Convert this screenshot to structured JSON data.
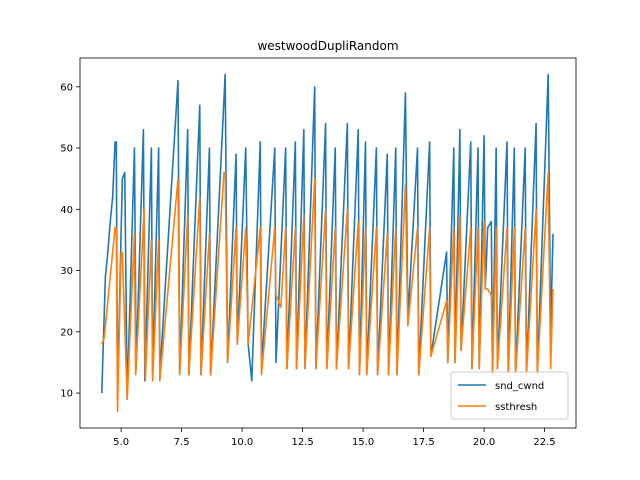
{
  "chart_data": {
    "type": "line",
    "title": "westwoodDupliRandom",
    "xlabel": "",
    "ylabel": "",
    "xlim": [
      3.3,
      23.8
    ],
    "ylim": [
      4.3,
      64.7
    ],
    "xticks": [
      5.0,
      7.5,
      10.0,
      12.5,
      15.0,
      17.5,
      20.0,
      22.5
    ],
    "xtick_labels": [
      "5.0",
      "7.5",
      "10.0",
      "12.5",
      "15.0",
      "17.5",
      "20.0",
      "22.5"
    ],
    "yticks": [
      10,
      20,
      30,
      40,
      50,
      60
    ],
    "ytick_labels": [
      "10",
      "20",
      "30",
      "40",
      "50",
      "60"
    ],
    "grid": false,
    "legend_position": "lower-right",
    "series": [
      {
        "name": "snd_cwnd",
        "color": "#1f77b4",
        "points": [
          [
            4.2,
            10
          ],
          [
            4.35,
            29
          ],
          [
            4.45,
            33
          ],
          [
            4.55,
            38
          ],
          [
            4.65,
            42
          ],
          [
            4.75,
            51
          ],
          [
            4.8,
            51
          ],
          [
            4.85,
            10
          ],
          [
            5.05,
            45
          ],
          [
            5.15,
            46
          ],
          [
            5.25,
            9
          ],
          [
            5.55,
            50
          ],
          [
            5.62,
            14
          ],
          [
            5.92,
            53
          ],
          [
            5.98,
            12
          ],
          [
            6.25,
            50
          ],
          [
            6.3,
            13
          ],
          [
            6.55,
            50
          ],
          [
            6.6,
            13
          ],
          [
            7.35,
            61
          ],
          [
            7.42,
            13
          ],
          [
            7.75,
            53
          ],
          [
            7.8,
            13
          ],
          [
            8.25,
            57
          ],
          [
            8.3,
            13
          ],
          [
            8.65,
            50
          ],
          [
            8.7,
            13
          ],
          [
            9.3,
            62
          ],
          [
            9.4,
            15
          ],
          [
            9.75,
            49
          ],
          [
            9.8,
            18
          ],
          [
            10.15,
            50
          ],
          [
            10.25,
            18
          ],
          [
            10.4,
            12
          ],
          [
            10.75,
            51
          ],
          [
            10.8,
            14
          ],
          [
            11.35,
            50
          ],
          [
            11.4,
            15
          ],
          [
            11.8,
            50
          ],
          [
            11.85,
            14
          ],
          [
            12.2,
            51
          ],
          [
            12.25,
            14
          ],
          [
            12.55,
            53
          ],
          [
            12.6,
            14
          ],
          [
            13.0,
            60
          ],
          [
            13.05,
            14
          ],
          [
            13.45,
            54
          ],
          [
            13.5,
            14
          ],
          [
            13.85,
            50
          ],
          [
            13.9,
            14
          ],
          [
            14.35,
            54
          ],
          [
            14.4,
            14
          ],
          [
            14.8,
            53
          ],
          [
            14.85,
            13
          ],
          [
            15.1,
            51
          ],
          [
            15.15,
            13
          ],
          [
            15.55,
            50
          ],
          [
            15.6,
            13
          ],
          [
            16.0,
            49
          ],
          [
            16.05,
            13
          ],
          [
            16.35,
            50
          ],
          [
            16.4,
            13
          ],
          [
            16.75,
            59
          ],
          [
            16.85,
            22
          ],
          [
            17.25,
            50
          ],
          [
            17.3,
            13
          ],
          [
            17.75,
            51
          ],
          [
            17.8,
            16
          ],
          [
            18.45,
            33
          ],
          [
            18.5,
            15
          ],
          [
            18.75,
            50
          ],
          [
            18.8,
            15
          ],
          [
            19.0,
            53
          ],
          [
            19.05,
            17
          ],
          [
            19.45,
            51
          ],
          [
            19.5,
            14
          ],
          [
            19.75,
            50
          ],
          [
            19.8,
            14
          ],
          [
            20.0,
            52
          ],
          [
            20.05,
            27
          ],
          [
            20.15,
            37
          ],
          [
            20.3,
            38
          ],
          [
            20.35,
            13
          ],
          [
            20.5,
            50
          ],
          [
            20.55,
            14
          ],
          [
            20.95,
            51
          ],
          [
            21.0,
            13
          ],
          [
            21.25,
            50
          ],
          [
            21.3,
            13
          ],
          [
            21.7,
            50
          ],
          [
            21.75,
            13
          ],
          [
            22.15,
            54
          ],
          [
            22.2,
            13
          ],
          [
            22.65,
            62
          ],
          [
            22.75,
            20
          ],
          [
            22.85,
            36
          ]
        ]
      },
      {
        "name": "ssthresh",
        "color": "#ff7f0e",
        "points": [
          [
            4.2,
            18
          ],
          [
            4.3,
            19
          ],
          [
            4.5,
            27
          ],
          [
            4.75,
            37
          ],
          [
            4.8,
            37
          ],
          [
            4.85,
            7
          ],
          [
            5.0,
            33
          ],
          [
            5.05,
            33
          ],
          [
            5.25,
            9
          ],
          [
            5.55,
            36
          ],
          [
            5.6,
            13
          ],
          [
            5.95,
            40
          ],
          [
            6.0,
            12
          ],
          [
            6.25,
            35
          ],
          [
            6.3,
            12
          ],
          [
            6.55,
            35
          ],
          [
            6.6,
            12
          ],
          [
            7.35,
            45
          ],
          [
            7.42,
            13
          ],
          [
            7.75,
            39
          ],
          [
            7.8,
            13
          ],
          [
            8.25,
            42
          ],
          [
            8.3,
            13
          ],
          [
            8.65,
            36
          ],
          [
            8.7,
            13
          ],
          [
            9.25,
            46
          ],
          [
            9.3,
            46
          ],
          [
            9.4,
            15
          ],
          [
            9.75,
            37
          ],
          [
            9.8,
            18
          ],
          [
            10.15,
            37
          ],
          [
            10.25,
            18
          ],
          [
            10.75,
            37
          ],
          [
            10.8,
            13
          ],
          [
            11.35,
            37
          ],
          [
            11.4,
            26
          ],
          [
            11.6,
            24
          ],
          [
            11.8,
            37
          ],
          [
            11.85,
            14
          ],
          [
            12.2,
            37
          ],
          [
            12.25,
            14
          ],
          [
            12.55,
            39
          ],
          [
            12.6,
            14
          ],
          [
            13.0,
            45
          ],
          [
            13.05,
            14
          ],
          [
            13.45,
            40
          ],
          [
            13.5,
            14
          ],
          [
            13.85,
            37
          ],
          [
            13.9,
            14
          ],
          [
            14.35,
            40
          ],
          [
            14.4,
            14
          ],
          [
            14.8,
            38
          ],
          [
            14.85,
            13
          ],
          [
            15.1,
            37
          ],
          [
            15.15,
            13
          ],
          [
            15.55,
            37
          ],
          [
            15.6,
            13
          ],
          [
            16.0,
            36
          ],
          [
            16.05,
            13
          ],
          [
            16.35,
            37
          ],
          [
            16.4,
            13
          ],
          [
            16.75,
            44
          ],
          [
            16.85,
            21
          ],
          [
            17.25,
            37
          ],
          [
            17.3,
            13
          ],
          [
            17.75,
            37
          ],
          [
            17.8,
            16
          ],
          [
            18.45,
            25
          ],
          [
            18.5,
            15
          ],
          [
            18.75,
            37
          ],
          [
            18.8,
            15
          ],
          [
            19.0,
            39
          ],
          [
            19.05,
            17
          ],
          [
            19.45,
            37
          ],
          [
            19.5,
            14
          ],
          [
            19.75,
            37
          ],
          [
            19.8,
            14
          ],
          [
            20.0,
            38
          ],
          [
            20.05,
            27
          ],
          [
            20.15,
            27
          ],
          [
            20.3,
            26
          ],
          [
            20.35,
            13
          ],
          [
            20.5,
            37
          ],
          [
            20.55,
            14
          ],
          [
            20.95,
            37
          ],
          [
            21.0,
            13
          ],
          [
            21.25,
            37
          ],
          [
            21.3,
            13
          ],
          [
            21.7,
            37
          ],
          [
            21.75,
            13
          ],
          [
            22.15,
            40
          ],
          [
            22.2,
            13
          ],
          [
            22.65,
            46
          ],
          [
            22.75,
            14
          ],
          [
            22.85,
            27
          ]
        ]
      }
    ]
  }
}
